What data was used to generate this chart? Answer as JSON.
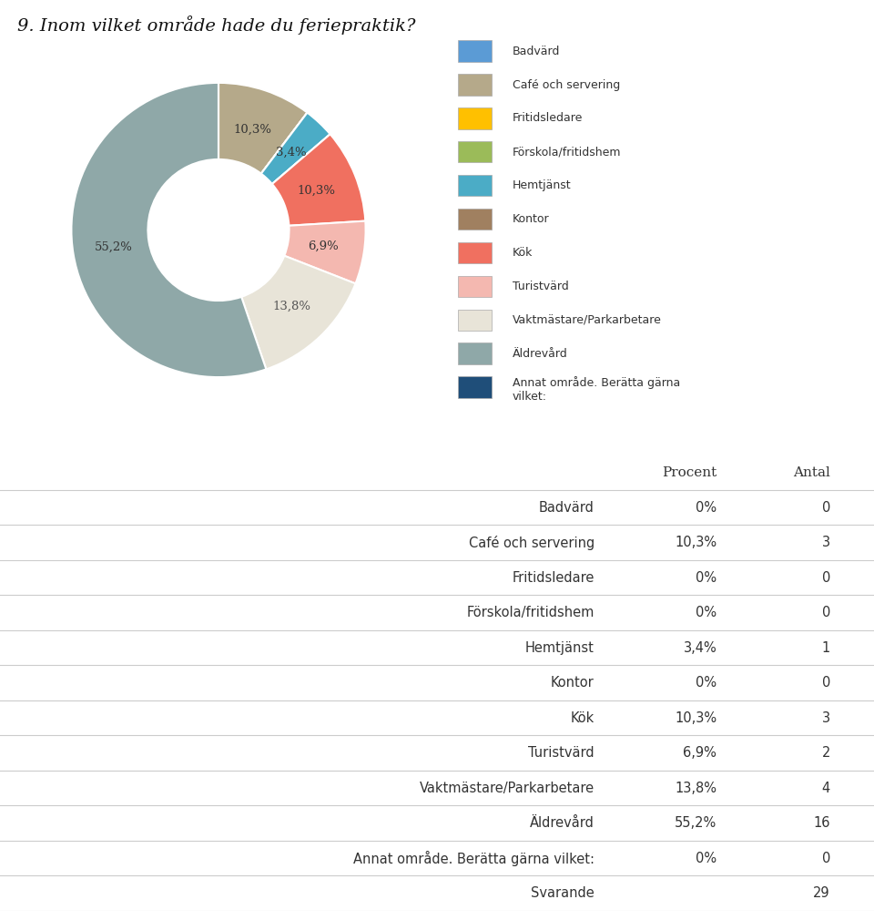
{
  "title": "9. Inom vilket område hade du feriepraktik?",
  "title_fontsize": 14,
  "pie_values": [
    0,
    10.3,
    0,
    0,
    3.4,
    0,
    10.3,
    6.9,
    13.8,
    55.2,
    0
  ],
  "pie_colors": [
    "#5b9bd5",
    "#b5a98a",
    "#ffc000",
    "#9bbb59",
    "#4bacc6",
    "#a08060",
    "#f07060",
    "#f4b8b0",
    "#e8e4d8",
    "#8fa8a8",
    "#1f4e79"
  ],
  "pie_display_labels": [
    "",
    "10,3%",
    "",
    "",
    "3,4%",
    "",
    "10,3%",
    "6,9%",
    "13,8%",
    "55,2%",
    ""
  ],
  "label_colors": [
    "#333333",
    "#333333",
    "#333333",
    "#333333",
    "#333333",
    "#333333",
    "#333333",
    "#333333",
    "#333333",
    "#333333",
    "#333333"
  ],
  "legend_labels": [
    "Badvärd",
    "Café och servering",
    "Fritidsledare",
    "Förskola/fritidshem",
    "Hemtjänst",
    "Kontor",
    "Kök",
    "Turistvärd",
    "Vaktmästare/Parkarbetare",
    "Äldrevård",
    "Annat område. Berätta gärna vilket:"
  ],
  "table_rows": [
    [
      "Badvärd",
      "0%",
      "0"
    ],
    [
      "Café och servering",
      "10,3%",
      "3"
    ],
    [
      "Fritidsledare",
      "0%",
      "0"
    ],
    [
      "Förskola/fritidshem",
      "0%",
      "0"
    ],
    [
      "Hemtjänst",
      "3,4%",
      "1"
    ],
    [
      "Kontor",
      "0%",
      "0"
    ],
    [
      "Kök",
      "10,3%",
      "3"
    ],
    [
      "Turistvärd",
      "6,9%",
      "2"
    ],
    [
      "Vaktmästare/Parkarbetare",
      "13,8%",
      "4"
    ],
    [
      "Äldrevård",
      "55,2%",
      "16"
    ],
    [
      "Annat område. Berätta gärna vilket:",
      "0%",
      "0"
    ],
    [
      "Svarande",
      "",
      "29"
    ]
  ],
  "table_col_headers": [
    "",
    "Procent",
    "Antal"
  ],
  "bg_color": "#ffffff",
  "text_color": "#333333",
  "table_line_color": "#cccccc"
}
